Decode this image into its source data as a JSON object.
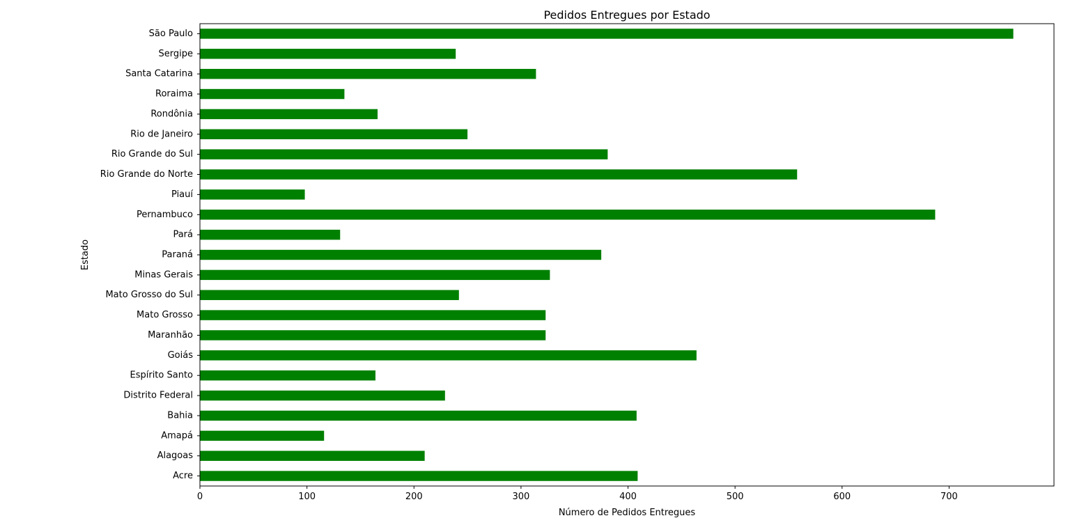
{
  "chart_data": {
    "type": "bar",
    "orientation": "horizontal",
    "title": "Pedidos Entregues por Estado",
    "xlabel": "Número de Pedidos Entregues",
    "ylabel": "Estado",
    "xlim": [
      0,
      798
    ],
    "xticks": [
      0,
      100,
      200,
      300,
      400,
      500,
      600,
      700
    ],
    "grid": false,
    "bar_color": "#008000",
    "categories": [
      "Acre",
      "Alagoas",
      "Amapá",
      "Bahia",
      "Distrito Federal",
      "Espírito Santo",
      "Goiás",
      "Maranhão",
      "Mato Grosso",
      "Mato Grosso do Sul",
      "Minas Gerais",
      "Paraná",
      "Pará",
      "Pernambuco",
      "Piauí",
      "Rio Grande do Norte",
      "Rio Grande do Sul",
      "Rio de Janeiro",
      "Rondônia",
      "Roraima",
      "Santa Catarina",
      "Sergipe",
      "São Paulo"
    ],
    "values": [
      409,
      210,
      116,
      408,
      229,
      164,
      464,
      323,
      323,
      242,
      327,
      375,
      131,
      687,
      98,
      558,
      381,
      250,
      166,
      135,
      314,
      239,
      760
    ]
  }
}
